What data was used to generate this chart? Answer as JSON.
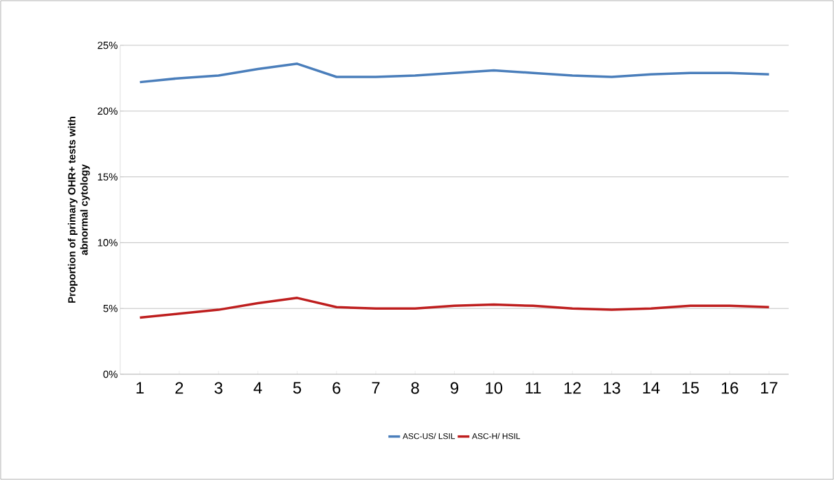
{
  "chart_data": {
    "type": "line",
    "ylabel": "Proportion of primary OHR+ tests with abnormal cytology",
    "categories": [
      "1",
      "2",
      "3",
      "4",
      "5",
      "6",
      "7",
      "8",
      "9",
      "10",
      "11",
      "12",
      "13",
      "14",
      "15",
      "16",
      "17"
    ],
    "series": [
      {
        "name": "ASC-US/ LSIL",
        "color": "#4a7ebb",
        "values": [
          22.2,
          22.5,
          22.7,
          23.2,
          23.6,
          22.6,
          22.6,
          22.7,
          22.9,
          23.1,
          22.9,
          22.7,
          22.6,
          22.8,
          22.9,
          22.9,
          22.8
        ]
      },
      {
        "name": "ASC-H/ HSIL",
        "color": "#be1e1e",
        "values": [
          4.3,
          4.6,
          4.9,
          5.4,
          5.8,
          5.1,
          5.0,
          5.0,
          5.2,
          5.3,
          5.2,
          5.0,
          4.9,
          5.0,
          5.2,
          5.2,
          5.1
        ]
      }
    ],
    "ylim": [
      0,
      25
    ],
    "yticks": [
      {
        "value": 0,
        "label": "0%"
      },
      {
        "value": 5,
        "label": "5%"
      },
      {
        "value": 10,
        "label": "10%"
      },
      {
        "value": 15,
        "label": "15%"
      },
      {
        "value": 20,
        "label": "20%"
      },
      {
        "value": 25,
        "label": "25%"
      }
    ],
    "grid": "y",
    "legend": "bottom",
    "marker": "none",
    "line_style": "solid"
  }
}
